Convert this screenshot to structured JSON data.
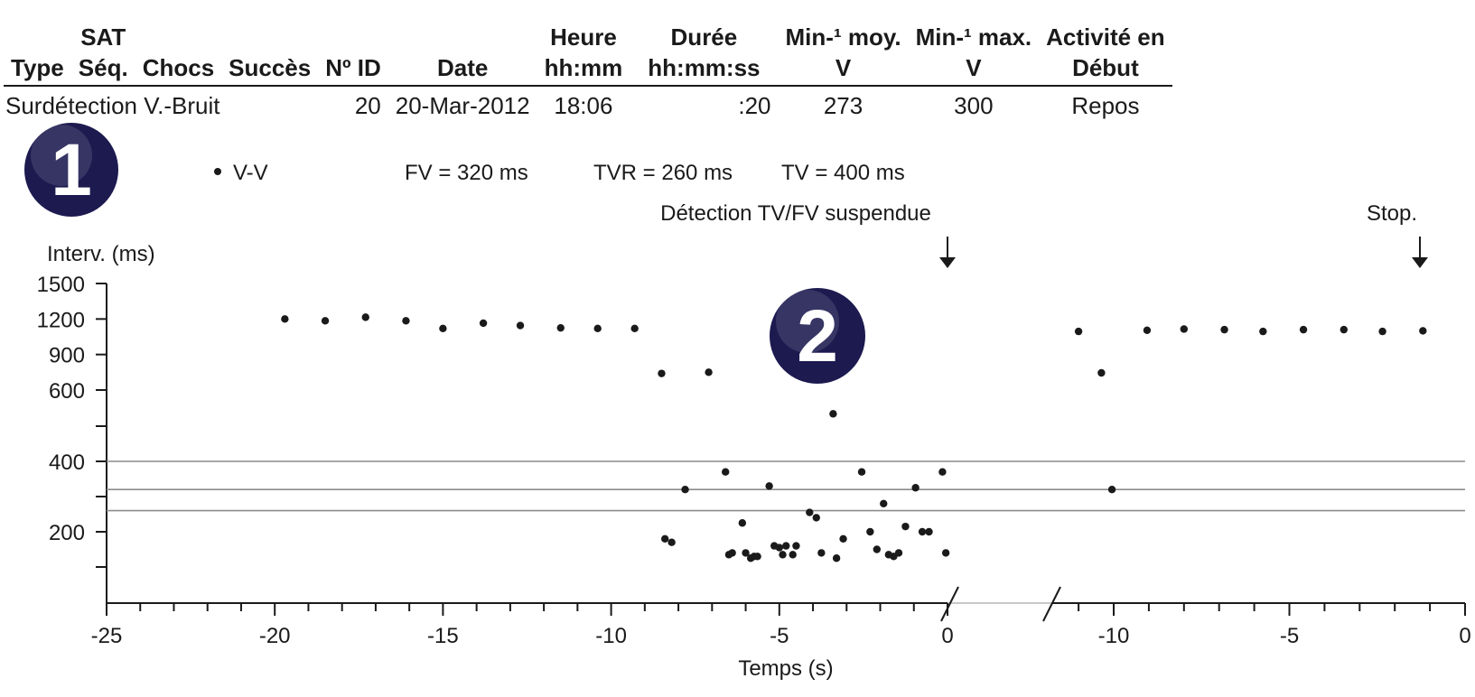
{
  "episode_table": {
    "headers": [
      {
        "top": "",
        "bottom": "Type"
      },
      {
        "top": "SAT",
        "bottom": "Séq."
      },
      {
        "top": "",
        "bottom": "Chocs"
      },
      {
        "top": "",
        "bottom": "Succès"
      },
      {
        "top": "",
        "bottom": "Nº ID"
      },
      {
        "top": "",
        "bottom": "Date"
      },
      {
        "top": "Heure",
        "bottom": "hh:mm"
      },
      {
        "top": "Durée",
        "bottom": "hh:mm:ss"
      },
      {
        "top": "Min-¹ moy.",
        "bottom": "V"
      },
      {
        "top": "Min-¹ max.",
        "bottom": "V"
      },
      {
        "top": "Activité en",
        "bottom": "Début"
      }
    ],
    "row": {
      "type": "Surdétection V.-Bruit",
      "id": "20",
      "date": "20-Mar-2012",
      "heure": "18:06",
      "duree": ":20",
      "min_moy": "273",
      "min_max": "300",
      "activite": "Repos"
    }
  },
  "badges": {
    "one": "1",
    "two": "2"
  },
  "legend": {
    "series": "V-V",
    "fv": "FV = 320 ms",
    "tvr": "TVR = 260 ms",
    "tv": "TV = 400 ms"
  },
  "annotations": {
    "suspended": "Détection TV/FV suspendue",
    "stop": "Stop."
  },
  "colors": {
    "badge": "#1c1a4f",
    "points": "#1a1a1a",
    "reference_lines": "#8c8c8c"
  },
  "chart_data": {
    "type": "scatter",
    "ylabel": "Interv. (ms)",
    "xlabel": "Temps (s)",
    "y_ticks": [
      1500,
      1200,
      900,
      600,
      400,
      200
    ],
    "x_ticks_segment1": [
      -25,
      -20,
      -15,
      -10,
      -5,
      0
    ],
    "x_ticks_segment2": [
      -10,
      -5,
      0
    ],
    "axis_break": "between segment 1 and segment 2",
    "reference_lines": [
      {
        "label": "TV",
        "y": 400
      },
      {
        "label": "FV",
        "y": 320
      },
      {
        "label": "TVR",
        "y": 260
      }
    ],
    "series": [
      {
        "name": "V-V",
        "segment1": [
          [
            -19.7,
            1200
          ],
          [
            -18.5,
            1185
          ],
          [
            -17.3,
            1215
          ],
          [
            -16.1,
            1185
          ],
          [
            -15,
            1120
          ],
          [
            -13.8,
            1165
          ],
          [
            -12.7,
            1145
          ],
          [
            -11.5,
            1125
          ],
          [
            -10.4,
            1120
          ],
          [
            -9.3,
            1120
          ],
          [
            -8.5,
            740
          ],
          [
            -7.1,
            750
          ],
          [
            -8.4,
            180
          ],
          [
            -8.2,
            170
          ],
          [
            -7.8,
            320
          ],
          [
            -6.6,
            370
          ],
          [
            -6.5,
            135
          ],
          [
            -6.4,
            140
          ],
          [
            -6.1,
            225
          ],
          [
            -6,
            140
          ],
          [
            -5.85,
            125
          ],
          [
            -5.75,
            130
          ],
          [
            -5.65,
            130
          ],
          [
            -5.3,
            330
          ],
          [
            -5.15,
            160
          ],
          [
            -5,
            155
          ],
          [
            -4.9,
            135
          ],
          [
            -4.8,
            160
          ],
          [
            -4.6,
            135
          ],
          [
            -4.5,
            160
          ],
          [
            -4.1,
            255
          ],
          [
            -3.9,
            240
          ],
          [
            -3.75,
            140
          ],
          [
            -3.4,
            535
          ],
          [
            -3.3,
            125
          ],
          [
            -3.1,
            180
          ],
          [
            -2.55,
            370
          ],
          [
            -2.3,
            200
          ],
          [
            -2.1,
            150
          ],
          [
            -1.9,
            280
          ],
          [
            -1.75,
            135
          ],
          [
            -1.6,
            130
          ],
          [
            -1.45,
            140
          ],
          [
            -1.25,
            215
          ],
          [
            -0.95,
            325
          ],
          [
            -0.75,
            200
          ],
          [
            -0.55,
            200
          ],
          [
            -0.15,
            370
          ],
          [
            -0.05,
            140
          ]
        ],
        "segment2": [
          [
            -11,
            1095
          ],
          [
            -10.35,
            745
          ],
          [
            -10.05,
            320
          ],
          [
            -9.05,
            1105
          ],
          [
            -8,
            1115
          ],
          [
            -6.85,
            1110
          ],
          [
            -5.75,
            1095
          ],
          [
            -4.6,
            1110
          ],
          [
            -3.45,
            1110
          ],
          [
            -2.35,
            1095
          ],
          [
            -1.2,
            1100
          ]
        ]
      }
    ]
  }
}
